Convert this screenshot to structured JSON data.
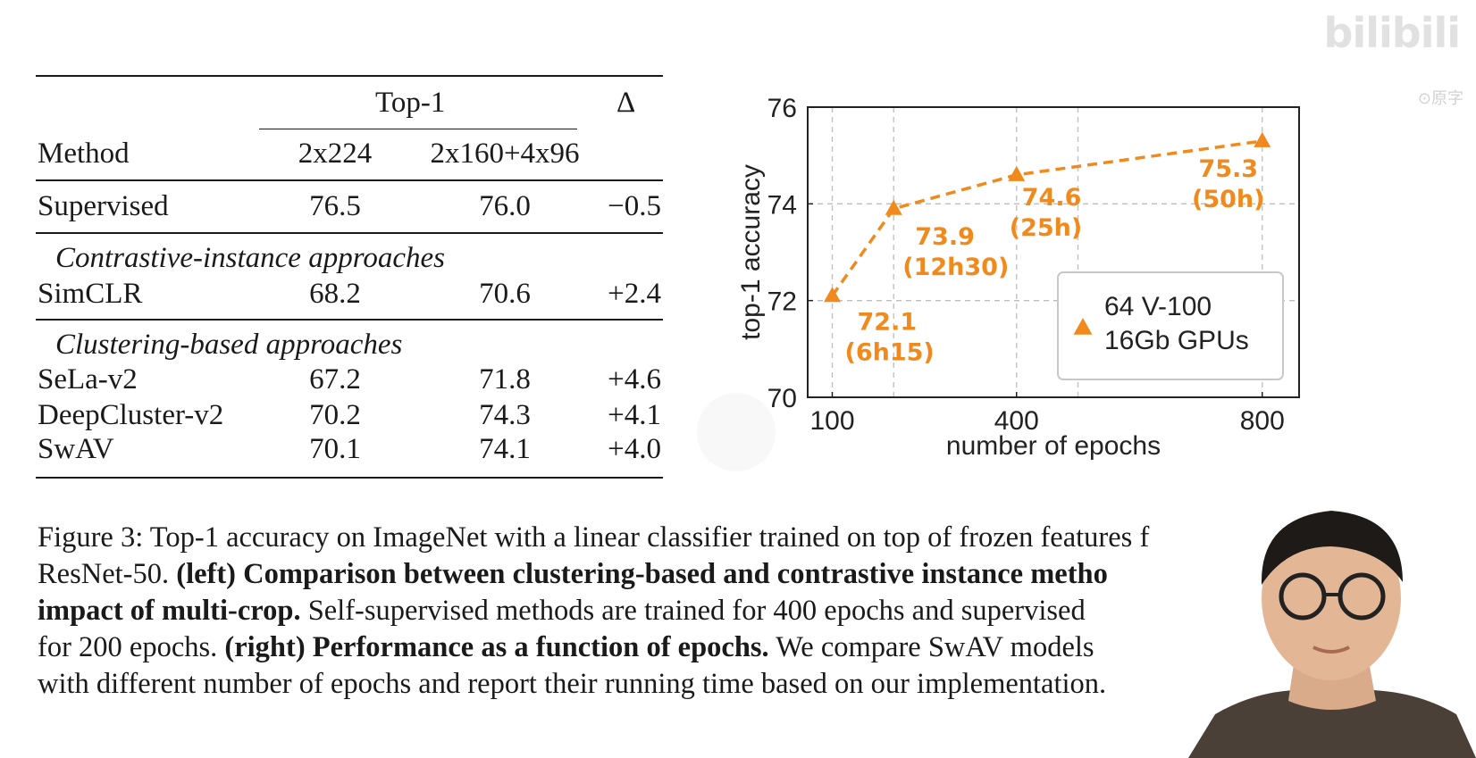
{
  "table": {
    "header_group": "Top-1",
    "delta_header": "Δ",
    "method_header": "Method",
    "col1_header": "2x224",
    "col2_header": "2x160+4x96",
    "supervised": {
      "method": "Supervised",
      "v1": "76.5",
      "v2": "76.0",
      "delta": "−0.5"
    },
    "section_contrastive": "Contrastive-instance approaches",
    "simclr": {
      "method": "SimCLR",
      "v1": "68.2",
      "v2": "70.6",
      "delta": "+2.4"
    },
    "section_clustering": "Clustering-based approaches",
    "sela": {
      "method": "SeLa-v2",
      "v1": "67.2",
      "v2": "71.8",
      "delta": "+4.6"
    },
    "deepcluster": {
      "method": "DeepCluster-v2",
      "v1": "70.2",
      "v2": "74.3",
      "delta": "+4.1"
    },
    "swav": {
      "method": "SwAV",
      "v1": "70.1",
      "v2": "74.1",
      "delta": "+4.0"
    }
  },
  "chart_data": {
    "type": "line",
    "xlabel": "number of epochs",
    "ylabel": "top-1 accuracy",
    "xlim": [
      60,
      860
    ],
    "ylim": [
      70,
      76
    ],
    "x_ticks": [
      100,
      400,
      800
    ],
    "x_tick_labels": [
      "100",
      "400",
      "800"
    ],
    "x_gridlines": [
      100,
      200,
      400,
      500,
      800
    ],
    "y_ticks": [
      70,
      72,
      74,
      76
    ],
    "y_tick_labels": [
      "70",
      "72",
      "74",
      "76"
    ],
    "series": [
      {
        "name": "64 V-100 16Gb GPUs",
        "x": [
          100,
          200,
          400,
          800
        ],
        "y": [
          72.1,
          73.9,
          74.6,
          75.3
        ],
        "value_labels": [
          "72.1",
          "73.9",
          "74.6",
          "75.3"
        ],
        "time_labels": [
          "(6h15)",
          "(12h30)",
          "(25h)",
          "(50h)"
        ]
      }
    ],
    "legend_line1": "64 V-100",
    "legend_line2": "16Gb GPUs",
    "legend_position": "bottom-right",
    "color": "#f08a1c"
  },
  "caption": {
    "p1": "Figure 3: Top-1 accuracy on ImageNet with a linear classifier trained on top of frozen features f",
    "p2": "ResNet-50. ",
    "b1": "(left) Comparison between clustering-based and contrastive instance metho",
    "b2": "impact of multi-crop.",
    "p3": " Self-supervised methods are trained for 400 epochs and supervised ",
    "p4": "for 200 epochs. ",
    "b3": "(right) Performance as a function of epochs.",
    "p5": " We compare SwAV models",
    "p6": "with different number of epochs and report their running time based on our implementation."
  },
  "overlay": {
    "watermark": "bilibili",
    "watermark_sub": "⊙原字"
  }
}
